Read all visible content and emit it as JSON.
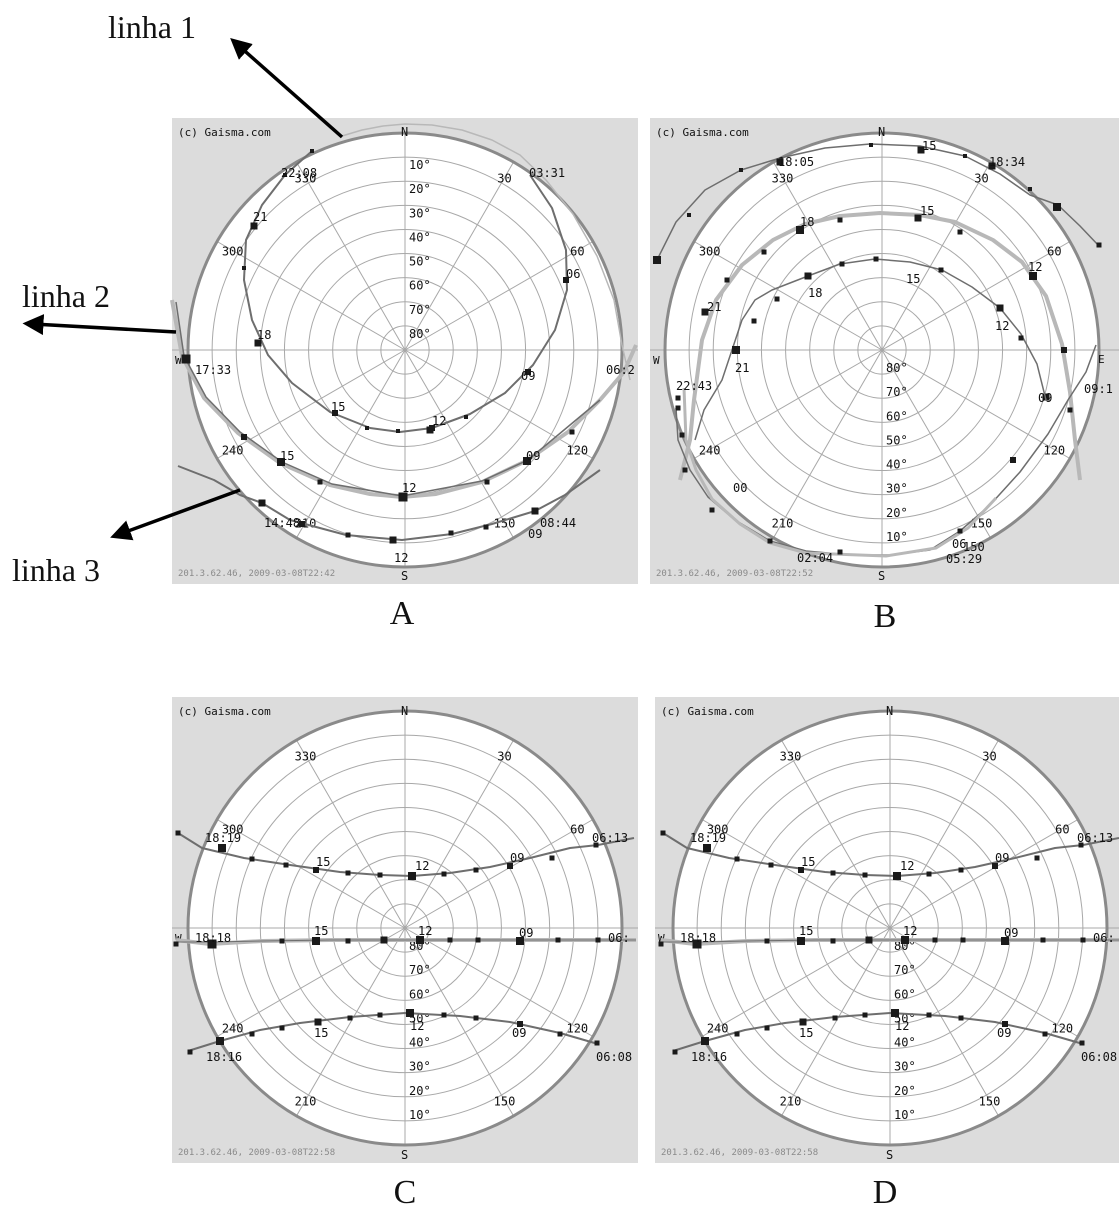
{
  "callouts": {
    "linha1": "linha 1",
    "linha2": "linha 2",
    "linha3": "linha 3"
  },
  "panel_labels": [
    "A",
    "B",
    "C",
    "D"
  ],
  "copyright": "(c) Gaisma.com",
  "compass": {
    "N": "N",
    "S": "S",
    "E": "E",
    "W": "W"
  },
  "azimuth_labels": [
    "30",
    "60",
    "120",
    "150",
    "210",
    "240",
    "300",
    "330"
  ],
  "altitude_labels": [
    "10°",
    "20°",
    "30°",
    "40°",
    "50°",
    "60°",
    "70°",
    "80°"
  ],
  "colors": {
    "panel_bg": "#dcdcdc",
    "disc_bg": "#ffffff",
    "grid": "#a8a8a8",
    "outer_ring": "#8a8a8a",
    "curve_dark": "#6e6e6e",
    "curve_light": "#b8b8b8",
    "marker": "#1a1a1a",
    "arrow": "#000000"
  },
  "panels": [
    {
      "id": "A",
      "footer": "201.3.62.46, 2009-03-08T22:42",
      "time_labels": [
        "22:08",
        "03:31",
        "21",
        "06",
        "18",
        "17:33",
        "09",
        "15",
        "12",
        "06:2",
        "15",
        "09",
        "12",
        "14:48",
        "08:44",
        "09",
        "12"
      ]
    },
    {
      "id": "B",
      "footer": "201.3.62.46, 2009-03-08T22:52",
      "time_labels": [
        "18:05",
        "15",
        "18:34",
        "18",
        "15",
        "15",
        "12",
        "18",
        "12",
        "21",
        "21",
        "22:43",
        "09:1",
        "09",
        "00",
        "06",
        "05:29",
        "02:04",
        "150"
      ]
    },
    {
      "id": "C",
      "footer": "201.3.62.46, 2009-03-08T22:58",
      "time_labels": [
        "18:19",
        "15",
        "12",
        "09",
        "06:13",
        "18:18",
        "15",
        "12",
        "09",
        "06:",
        "15",
        "12",
        "09",
        "18:16",
        "06:08"
      ]
    },
    {
      "id": "D",
      "footer": "201.3.62.46, 2009-03-08T22:58",
      "time_labels": [
        "18:19",
        "15",
        "12",
        "09",
        "06:13",
        "18:18",
        "15",
        "12",
        "09",
        "06:",
        "15",
        "12",
        "09",
        "18:16",
        "06:08"
      ]
    }
  ]
}
